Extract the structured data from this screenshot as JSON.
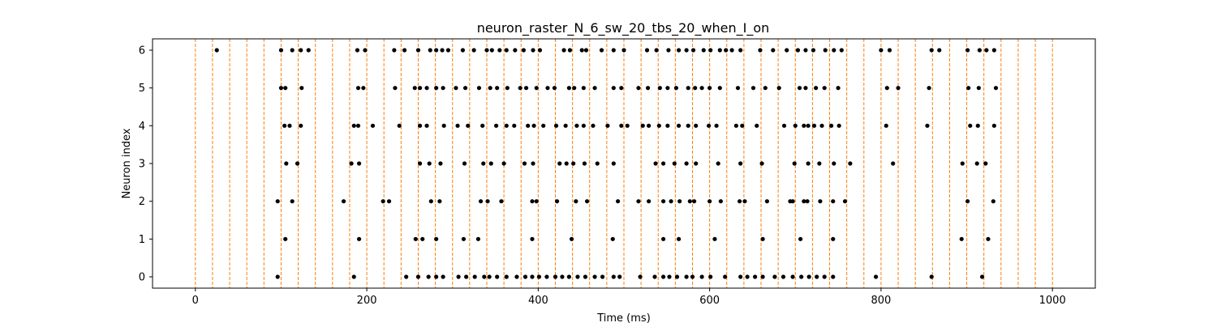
{
  "chart_data": {
    "type": "scatter",
    "title": "neuron_raster_N_6_sw_20_tbs_20_when_I_on",
    "xlabel": "Time (ms)",
    "ylabel": "Neuron index",
    "xlim": [
      -50,
      1050
    ],
    "ylim": [
      -0.3,
      6.3
    ],
    "xticks": [
      0,
      200,
      400,
      600,
      800,
      1000
    ],
    "yticks": [
      0,
      1,
      2,
      3,
      4,
      5,
      6
    ],
    "grid": false,
    "marker_color": "#000000",
    "vline_color": "#ff7f0e",
    "vlines": [
      0,
      20,
      40,
      60,
      80,
      100,
      120,
      140,
      160,
      180,
      200,
      220,
      240,
      260,
      280,
      300,
      320,
      340,
      360,
      380,
      400,
      420,
      440,
      460,
      480,
      500,
      520,
      540,
      560,
      580,
      600,
      620,
      640,
      660,
      680,
      700,
      720,
      740,
      760,
      780,
      800,
      820,
      840,
      860,
      880,
      900,
      920,
      940,
      960,
      980,
      1000
    ],
    "series": [
      {
        "neuron": 0,
        "x": [
          96,
          185,
          246,
          260,
          272,
          281,
          289,
          307,
          316,
          326,
          337,
          343,
          352,
          363,
          375,
          385,
          393,
          401,
          410,
          420,
          428,
          436,
          446,
          455,
          466,
          475,
          488,
          495,
          519,
          536,
          546,
          553,
          562,
          573,
          580,
          591,
          601,
          618,
          636,
          644,
          653,
          662,
          676,
          686,
          697,
          707,
          716,
          725,
          734,
          744,
          794,
          859,
          918
        ]
      },
      {
        "neuron": 1,
        "x": [
          105,
          191,
          257,
          265,
          281,
          313,
          330,
          393,
          439,
          487,
          546,
          564,
          606,
          662,
          706,
          744,
          894,
          925
        ]
      },
      {
        "neuron": 2,
        "x": [
          96,
          113,
          173,
          219,
          226,
          275,
          285,
          333,
          341,
          357,
          393,
          398,
          422,
          444,
          457,
          493,
          517,
          529,
          546,
          555,
          565,
          577,
          582,
          600,
          613,
          635,
          641,
          667,
          694,
          697,
          710,
          714,
          729,
          744,
          758,
          901,
          931
        ]
      },
      {
        "neuron": 3,
        "x": [
          106,
          119,
          182,
          191,
          262,
          273,
          286,
          314,
          336,
          345,
          360,
          384,
          394,
          425,
          433,
          441,
          454,
          469,
          488,
          537,
          546,
          559,
          573,
          584,
          610,
          636,
          661,
          699,
          715,
          728,
          745,
          764,
          814,
          895,
          912,
          922
        ]
      },
      {
        "neuron": 4,
        "x": [
          104,
          110,
          123,
          185,
          190,
          207,
          238,
          262,
          270,
          290,
          306,
          318,
          335,
          351,
          363,
          372,
          388,
          395,
          406,
          421,
          432,
          445,
          453,
          464,
          481,
          497,
          504,
          522,
          529,
          541,
          551,
          564,
          575,
          584,
          599,
          608,
          631,
          638,
          655,
          687,
          700,
          710,
          715,
          722,
          731,
          742,
          751,
          806,
          854,
          904,
          913,
          932
        ]
      },
      {
        "neuron": 5,
        "x": [
          100,
          105,
          124,
          190,
          196,
          233,
          256,
          262,
          270,
          281,
          289,
          304,
          315,
          331,
          344,
          352,
          364,
          379,
          386,
          398,
          411,
          419,
          436,
          442,
          453,
          466,
          488,
          497,
          517,
          528,
          542,
          551,
          561,
          575,
          583,
          591,
          600,
          612,
          633,
          651,
          665,
          681,
          705,
          712,
          724,
          734,
          750,
          807,
          820,
          856,
          902,
          914,
          934
        ]
      },
      {
        "neuron": 6,
        "x": [
          25,
          100,
          113,
          123,
          132,
          189,
          198,
          232,
          244,
          260,
          274,
          281,
          288,
          295,
          312,
          325,
          340,
          346,
          355,
          363,
          373,
          383,
          394,
          402,
          430,
          437,
          451,
          456,
          474,
          488,
          500,
          527,
          538,
          552,
          564,
          573,
          581,
          593,
          601,
          612,
          619,
          626,
          636,
          659,
          674,
          690,
          703,
          712,
          721,
          735,
          745,
          754,
          800,
          810,
          859,
          868,
          901,
          915,
          923,
          932
        ]
      }
    ]
  }
}
